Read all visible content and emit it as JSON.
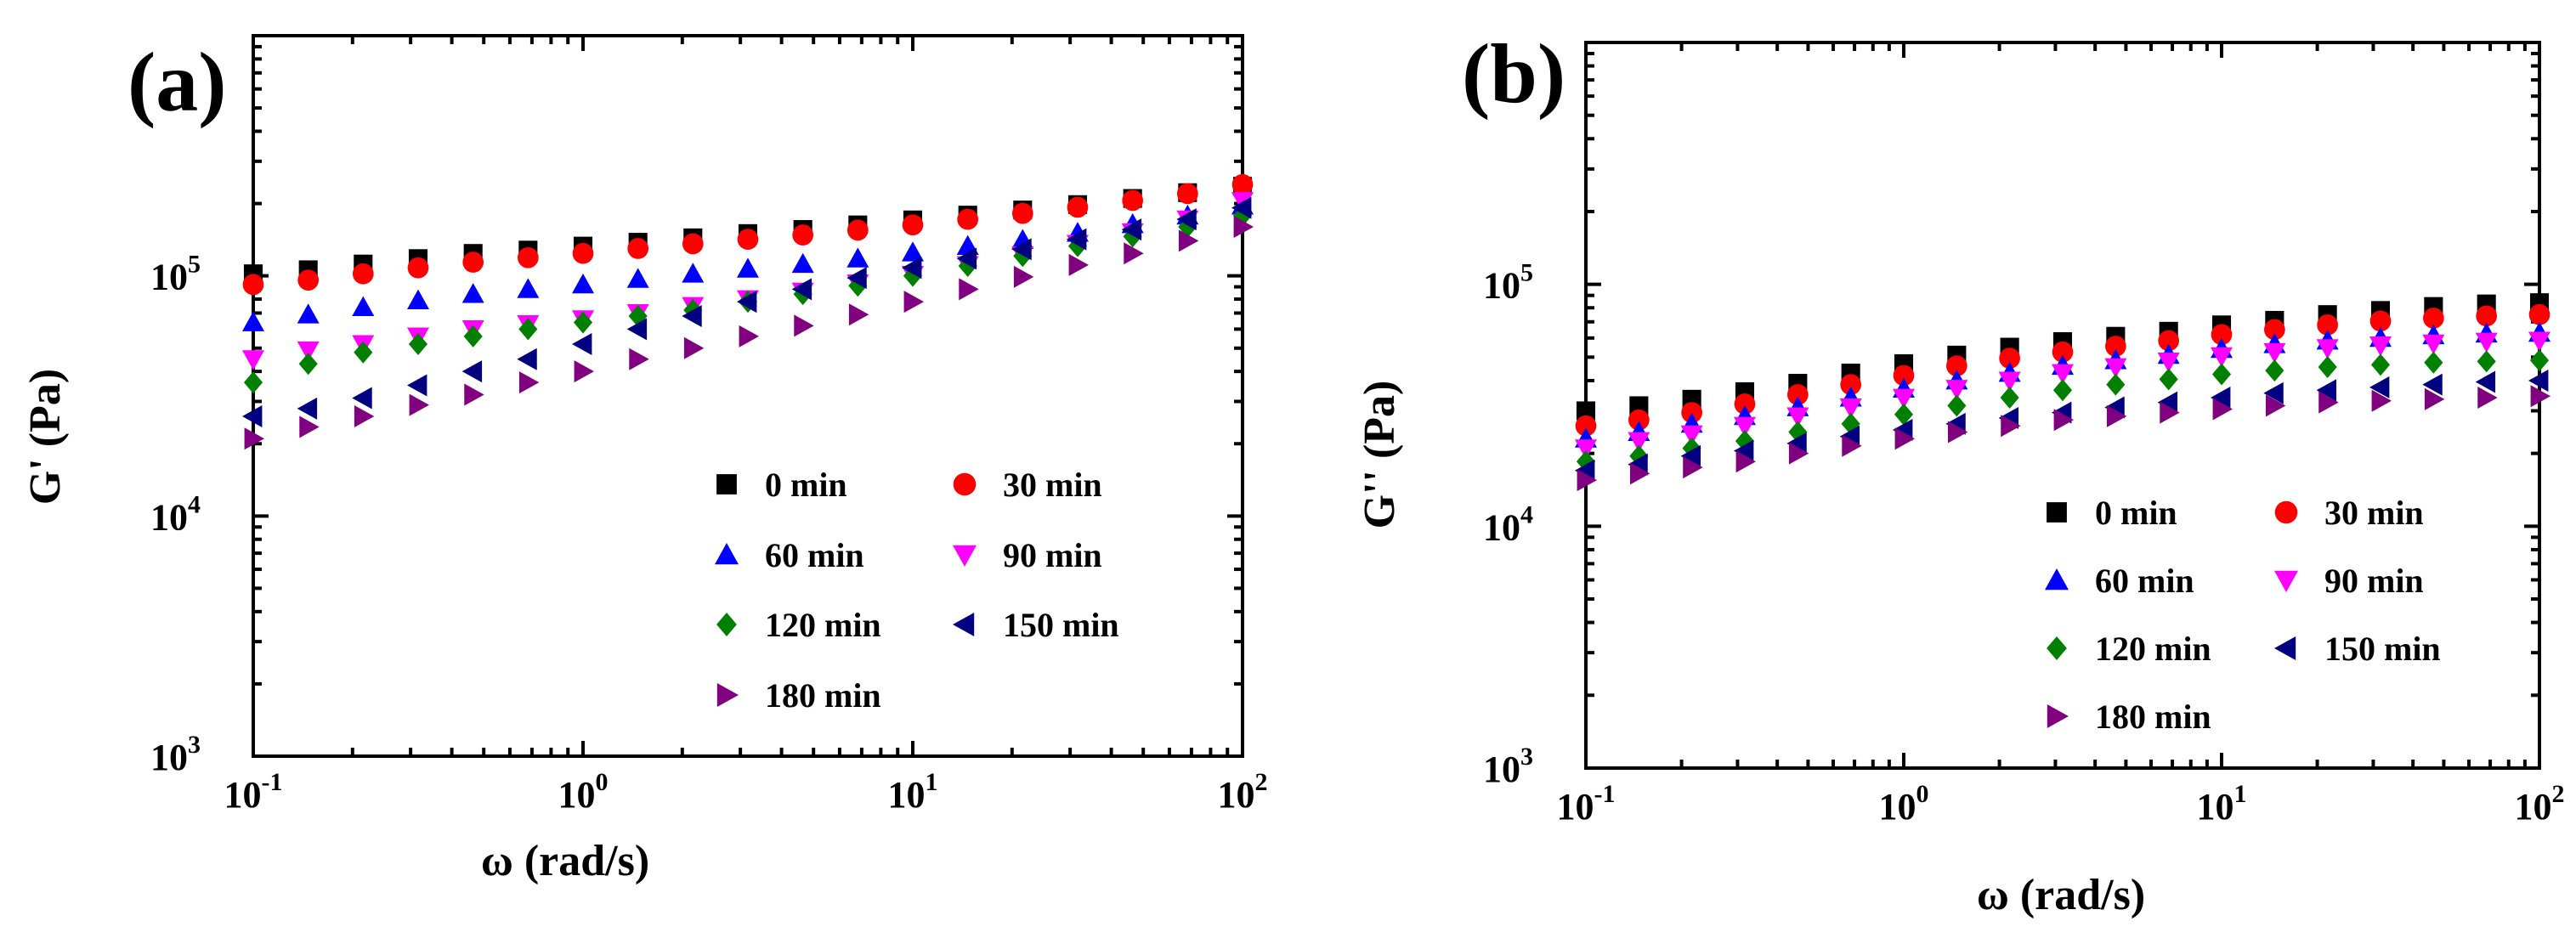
{
  "chart_data": [
    {
      "type": "scatter",
      "panel_label": "(a)",
      "xlabel": "ω (rad/s)",
      "ylabel": "G' (Pa)",
      "xscale": "log",
      "yscale": "log",
      "xlim": [
        0.1,
        100
      ],
      "ylim": [
        1000,
        1000000
      ],
      "x_ticks": [
        {
          "base": "10",
          "exp": "-1"
        },
        {
          "base": "10",
          "exp": "0"
        },
        {
          "base": "10",
          "exp": "1"
        },
        {
          "base": "10",
          "exp": "2"
        }
      ],
      "y_ticks": [
        {
          "base": "10",
          "exp": "3"
        },
        {
          "base": "10",
          "exp": "4"
        },
        {
          "base": "10",
          "exp": "5"
        }
      ],
      "legend_position": "bottom-right",
      "x": [
        0.1,
        0.1468,
        0.2154,
        0.3162,
        0.4642,
        0.6813,
        1.0,
        1.468,
        2.154,
        3.162,
        4.642,
        6.813,
        10.0,
        14.68,
        21.54,
        31.62,
        46.42,
        68.13,
        100.0
      ],
      "series": [
        {
          "name": "0 min",
          "marker": "square",
          "color": "#000000",
          "values": [
            102000,
            106000,
            112000,
            118000,
            124000,
            128000,
            133000,
            138000,
            144000,
            150000,
            156000,
            163000,
            171000,
            179000,
            188000,
            198000,
            210000,
            222000,
            236000
          ]
        },
        {
          "name": "30 min",
          "marker": "circle",
          "color": "#ff0000",
          "values": [
            92000,
            96000,
            102000,
            108000,
            114000,
            119000,
            124000,
            130000,
            136000,
            142000,
            148000,
            155000,
            163000,
            172000,
            182000,
            193000,
            206000,
            220000,
            240000
          ]
        },
        {
          "name": "60 min",
          "marker": "triangle-up",
          "color": "#0000ff",
          "values": [
            64000,
            69000,
            74000,
            79000,
            84000,
            88000,
            92000,
            97000,
            102000,
            107000,
            112000,
            118000,
            125000,
            133000,
            141000,
            151000,
            164000,
            178000,
            196000
          ]
        },
        {
          "name": "90 min",
          "marker": "triangle-down",
          "color": "#ff00ff",
          "values": [
            45000,
            49000,
            52000,
            56000,
            60000,
            63000,
            66000,
            70000,
            75000,
            80000,
            86000,
            93000,
            101000,
            111000,
            122000,
            136000,
            152000,
            172000,
            205000
          ]
        },
        {
          "name": "120 min",
          "marker": "diamond",
          "color": "#008000",
          "values": [
            36000,
            43000,
            48000,
            52000,
            56000,
            60000,
            64000,
            68000,
            72000,
            78000,
            84000,
            91000,
            100000,
            110000,
            121000,
            133000,
            146000,
            160000,
            178000
          ]
        },
        {
          "name": "150 min",
          "marker": "triangle-left",
          "color": "#000080",
          "values": [
            26000,
            28000,
            31000,
            35000,
            40000,
            45000,
            52000,
            60000,
            68000,
            78000,
            88000,
            98000,
            108000,
            118000,
            129000,
            142000,
            156000,
            172000,
            192000
          ]
        },
        {
          "name": "180 min",
          "marker": "triangle-right",
          "color": "#800080",
          "values": [
            21000,
            23500,
            26000,
            29000,
            32000,
            36000,
            40000,
            45000,
            50000,
            56000,
            62000,
            69000,
            78000,
            88000,
            99000,
            111000,
            124000,
            140000,
            160000
          ]
        }
      ]
    },
    {
      "type": "scatter",
      "panel_label": "(b)",
      "xlabel": "ω (rad/s)",
      "ylabel": "G'' (Pa)",
      "xscale": "log",
      "yscale": "log",
      "xlim": [
        0.1,
        100
      ],
      "ylim": [
        1000,
        1000000
      ],
      "x_ticks": [
        {
          "base": "10",
          "exp": "-1"
        },
        {
          "base": "10",
          "exp": "0"
        },
        {
          "base": "10",
          "exp": "1"
        },
        {
          "base": "10",
          "exp": "2"
        }
      ],
      "y_ticks": [
        {
          "base": "10",
          "exp": "3"
        },
        {
          "base": "10",
          "exp": "4"
        },
        {
          "base": "10",
          "exp": "5"
        }
      ],
      "legend_position": "bottom-right",
      "x": [
        0.1,
        0.1468,
        0.2154,
        0.3162,
        0.4642,
        0.6813,
        1.0,
        1.468,
        2.154,
        3.162,
        4.642,
        6.813,
        10.0,
        14.68,
        21.54,
        31.62,
        46.42,
        68.13,
        100.0
      ],
      "series": [
        {
          "name": "0 min",
          "marker": "square",
          "color": "#000000",
          "values": [
            30000,
            31500,
            33500,
            36000,
            39000,
            43000,
            47000,
            51000,
            55000,
            58000,
            61000,
            64000,
            68000,
            71000,
            75000,
            78000,
            81000,
            83000,
            84000
          ]
        },
        {
          "name": "30 min",
          "marker": "circle",
          "color": "#ff0000",
          "values": [
            26000,
            27500,
            29500,
            32000,
            35000,
            38500,
            42000,
            46000,
            49500,
            52500,
            55500,
            58500,
            62000,
            65000,
            68000,
            70500,
            72500,
            74000,
            75000
          ]
        },
        {
          "name": "60 min",
          "marker": "triangle-up",
          "color": "#0000ff",
          "values": [
            23000,
            24500,
            26500,
            28500,
            31000,
            34000,
            37000,
            40000,
            43000,
            46000,
            48500,
            51000,
            54000,
            56500,
            58500,
            60000,
            61500,
            62500,
            63000
          ]
        },
        {
          "name": "90 min",
          "marker": "triangle-down",
          "color": "#ff00ff",
          "values": [
            21000,
            22500,
            24000,
            26000,
            28500,
            31000,
            34000,
            37000,
            40000,
            43000,
            45500,
            48000,
            50500,
            52500,
            54500,
            56000,
            57000,
            58000,
            58500
          ]
        },
        {
          "name": "120 min",
          "marker": "diamond",
          "color": "#008000",
          "values": [
            18500,
            19500,
            21000,
            22500,
            24500,
            26500,
            29000,
            31500,
            34000,
            36500,
            38500,
            40500,
            42500,
            44000,
            45500,
            46500,
            47500,
            48000,
            48500
          ]
        },
        {
          "name": "150 min",
          "marker": "triangle-left",
          "color": "#000080",
          "values": [
            17000,
            18000,
            19500,
            20500,
            22000,
            23500,
            25000,
            26500,
            28000,
            29500,
            31000,
            32500,
            34000,
            35500,
            36500,
            37500,
            38500,
            39500,
            40000
          ]
        },
        {
          "name": "180 min",
          "marker": "triangle-right",
          "color": "#800080",
          "values": [
            15500,
            16500,
            17500,
            18500,
            20000,
            21500,
            23000,
            24500,
            26000,
            27500,
            28500,
            29500,
            30500,
            31500,
            32500,
            33000,
            33500,
            34000,
            34500
          ]
        }
      ]
    }
  ]
}
